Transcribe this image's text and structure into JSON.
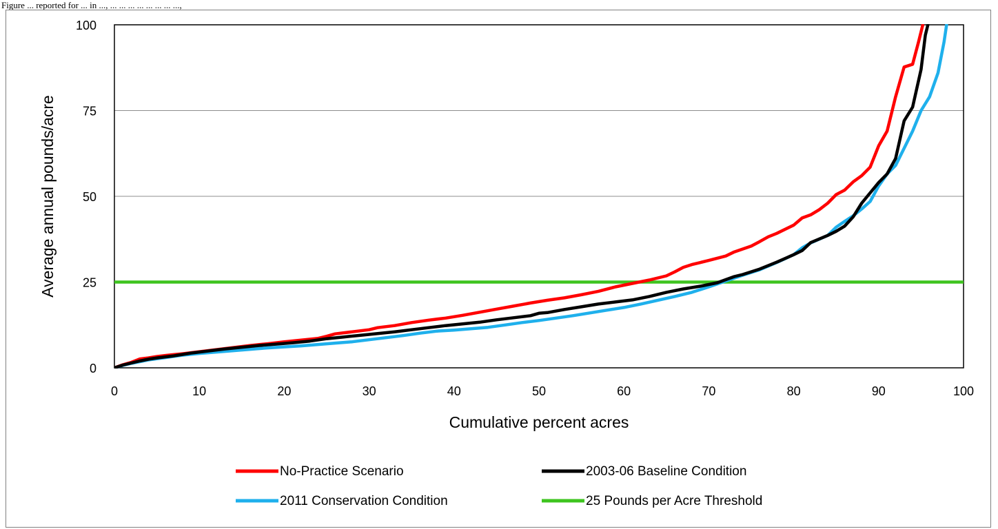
{
  "caption": "Figure ... reported for ... in ..., ... ... ... ... ... ... ... ...,",
  "chart_data": {
    "type": "line",
    "title": "",
    "xlabel": "Cumulative percent acres",
    "ylabel": "Average annual pounds/acre",
    "xlim": [
      0,
      100
    ],
    "ylim": [
      0,
      100
    ],
    "x_ticks": [
      "0",
      "10",
      "20",
      "30",
      "40",
      "50",
      "60",
      "70",
      "80",
      "90",
      "100"
    ],
    "y_ticks": [
      "0",
      "25",
      "50",
      "75",
      "100"
    ],
    "grid": "horizontal",
    "legend_position": "bottom",
    "series": [
      {
        "name": "No-Practice Scenario",
        "color": "#ff0000",
        "points": [
          [
            0,
            0
          ],
          [
            1,
            0.9
          ],
          [
            2,
            1.6
          ],
          [
            3,
            2.6
          ],
          [
            4,
            2.9
          ],
          [
            5,
            3.3
          ],
          [
            6,
            3.6
          ],
          [
            8,
            4.1
          ],
          [
            10,
            4.7
          ],
          [
            12,
            5.3
          ],
          [
            14,
            5.9
          ],
          [
            16,
            6.5
          ],
          [
            18,
            7.0
          ],
          [
            20,
            7.6
          ],
          [
            22,
            8.1
          ],
          [
            24,
            8.6
          ],
          [
            25,
            9.2
          ],
          [
            26,
            9.9
          ],
          [
            28,
            10.5
          ],
          [
            30,
            11.1
          ],
          [
            31,
            11.7
          ],
          [
            33,
            12.3
          ],
          [
            35,
            13.2
          ],
          [
            37,
            13.9
          ],
          [
            39,
            14.5
          ],
          [
            41,
            15.3
          ],
          [
            43,
            16.2
          ],
          [
            45,
            17.1
          ],
          [
            47,
            18.0
          ],
          [
            49,
            18.9
          ],
          [
            51,
            19.7
          ],
          [
            53,
            20.4
          ],
          [
            55,
            21.3
          ],
          [
            57,
            22.3
          ],
          [
            59,
            23.6
          ],
          [
            61,
            24.6
          ],
          [
            63,
            25.6
          ],
          [
            65,
            26.8
          ],
          [
            66,
            28.0
          ],
          [
            67,
            29.3
          ],
          [
            68,
            30.1
          ],
          [
            70,
            31.3
          ],
          [
            72,
            32.6
          ],
          [
            73,
            33.8
          ],
          [
            75,
            35.5
          ],
          [
            76,
            36.8
          ],
          [
            77,
            38.2
          ],
          [
            78,
            39.2
          ],
          [
            80,
            41.6
          ],
          [
            81,
            43.7
          ],
          [
            82,
            44.6
          ],
          [
            83,
            46.1
          ],
          [
            84,
            48.0
          ],
          [
            85,
            50.5
          ],
          [
            86,
            51.8
          ],
          [
            87,
            54.2
          ],
          [
            88,
            56.0
          ],
          [
            89,
            58.5
          ],
          [
            90,
            64.7
          ],
          [
            91,
            69.0
          ],
          [
            92,
            79.0
          ],
          [
            93,
            87.7
          ],
          [
            94,
            88.5
          ],
          [
            94.7,
            95.0
          ],
          [
            95.2,
            100
          ]
        ]
      },
      {
        "name": "2003-06 Baseline Condition",
        "color": "#000000",
        "points": [
          [
            0,
            0
          ],
          [
            1,
            0.8
          ],
          [
            2,
            1.4
          ],
          [
            3,
            2.0
          ],
          [
            4,
            2.5
          ],
          [
            5,
            2.9
          ],
          [
            7,
            3.5
          ],
          [
            9,
            4.3
          ],
          [
            11,
            4.9
          ],
          [
            13,
            5.5
          ],
          [
            15,
            6.0
          ],
          [
            17,
            6.5
          ],
          [
            19,
            6.9
          ],
          [
            21,
            7.3
          ],
          [
            23,
            7.8
          ],
          [
            25,
            8.5
          ],
          [
            27,
            9.0
          ],
          [
            29,
            9.5
          ],
          [
            31,
            10.0
          ],
          [
            33,
            10.5
          ],
          [
            35,
            11.1
          ],
          [
            37,
            11.7
          ],
          [
            39,
            12.3
          ],
          [
            41,
            12.8
          ],
          [
            43,
            13.3
          ],
          [
            45,
            14.0
          ],
          [
            47,
            14.6
          ],
          [
            49,
            15.2
          ],
          [
            50,
            15.9
          ],
          [
            51,
            16.1
          ],
          [
            53,
            17.0
          ],
          [
            55,
            17.8
          ],
          [
            57,
            18.6
          ],
          [
            59,
            19.2
          ],
          [
            61,
            19.8
          ],
          [
            63,
            20.8
          ],
          [
            65,
            22.0
          ],
          [
            67,
            23.0
          ],
          [
            69,
            23.8
          ],
          [
            71,
            24.8
          ],
          [
            72,
            25.7
          ],
          [
            73,
            26.6
          ],
          [
            74,
            27.2
          ],
          [
            76,
            28.8
          ],
          [
            78,
            30.8
          ],
          [
            80,
            33.0
          ],
          [
            81,
            34.2
          ],
          [
            82,
            36.5
          ],
          [
            84,
            38.6
          ],
          [
            85,
            39.8
          ],
          [
            86,
            41.3
          ],
          [
            87,
            44.0
          ],
          [
            88,
            48.0
          ],
          [
            89,
            51.0
          ],
          [
            90,
            54.0
          ],
          [
            91,
            56.5
          ],
          [
            92,
            61.0
          ],
          [
            93,
            72.0
          ],
          [
            94,
            76.0
          ],
          [
            95,
            87.0
          ],
          [
            95.5,
            97.0
          ],
          [
            95.8,
            100
          ]
        ]
      },
      {
        "name": "2011 Conservation Condition",
        "color": "#1fb0ec",
        "points": [
          [
            0,
            0
          ],
          [
            1,
            0.7
          ],
          [
            2,
            1.3
          ],
          [
            3,
            1.8
          ],
          [
            4,
            2.3
          ],
          [
            6,
            3.0
          ],
          [
            8,
            3.7
          ],
          [
            10,
            4.2
          ],
          [
            12,
            4.6
          ],
          [
            14,
            5.0
          ],
          [
            16,
            5.4
          ],
          [
            18,
            5.8
          ],
          [
            20,
            6.1
          ],
          [
            22,
            6.4
          ],
          [
            24,
            6.8
          ],
          [
            26,
            7.2
          ],
          [
            28,
            7.6
          ],
          [
            30,
            8.2
          ],
          [
            32,
            8.8
          ],
          [
            34,
            9.4
          ],
          [
            36,
            10.1
          ],
          [
            38,
            10.7
          ],
          [
            40,
            11.0
          ],
          [
            42,
            11.4
          ],
          [
            44,
            11.8
          ],
          [
            46,
            12.5
          ],
          [
            48,
            13.2
          ],
          [
            50,
            13.8
          ],
          [
            52,
            14.5
          ],
          [
            54,
            15.2
          ],
          [
            56,
            16.0
          ],
          [
            58,
            16.8
          ],
          [
            60,
            17.6
          ],
          [
            62,
            18.6
          ],
          [
            64,
            19.7
          ],
          [
            66,
            20.8
          ],
          [
            68,
            22.0
          ],
          [
            70,
            23.6
          ],
          [
            72,
            25.3
          ],
          [
            74,
            27.0
          ],
          [
            76,
            28.6
          ],
          [
            78,
            30.7
          ],
          [
            80,
            33.0
          ],
          [
            81,
            35.0
          ],
          [
            82,
            36.4
          ],
          [
            84,
            38.6
          ],
          [
            85,
            41.0
          ],
          [
            86,
            42.7
          ],
          [
            87,
            44.3
          ],
          [
            88,
            46.3
          ],
          [
            89,
            48.5
          ],
          [
            90,
            53.0
          ],
          [
            91,
            56.5
          ],
          [
            92,
            59.0
          ],
          [
            93,
            64.0
          ],
          [
            94,
            69.0
          ],
          [
            95,
            75.0
          ],
          [
            96,
            79.0
          ],
          [
            97,
            86.0
          ],
          [
            97.7,
            95.0
          ],
          [
            98,
            100
          ]
        ]
      },
      {
        "name": "25 Pounds per Acre Threshold",
        "color": "#3ec41f",
        "points": [
          [
            0,
            25
          ],
          [
            100,
            25
          ]
        ]
      }
    ]
  }
}
